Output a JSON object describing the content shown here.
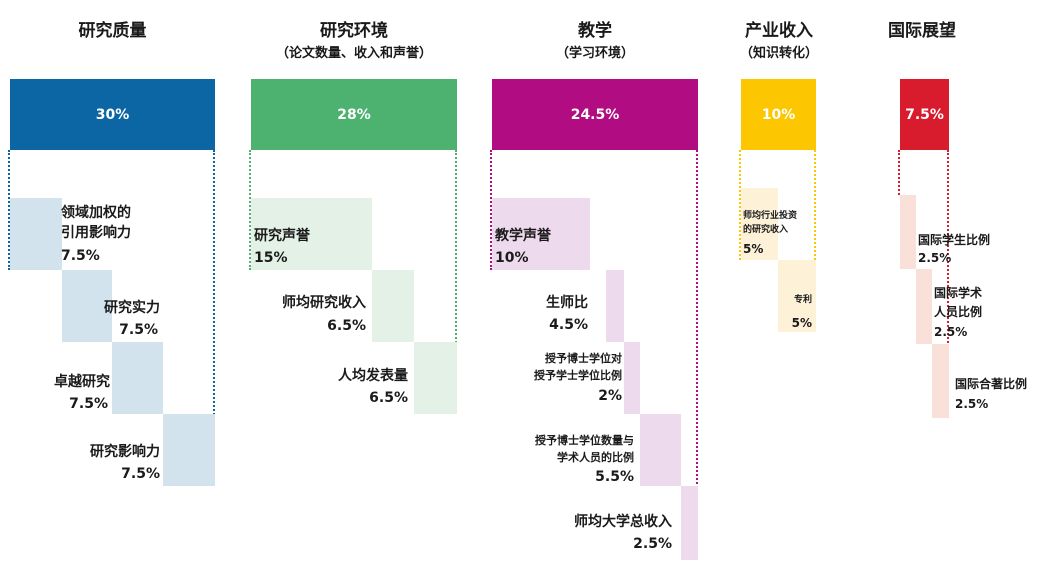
{
  "pillars": [
    {
      "title": "研究质量",
      "subtitle": "",
      "weight": "30%",
      "color": "#0c66a3",
      "tint": "#d3e3ee",
      "items": [
        {
          "name": "领域加权的\n引用影响力",
          "weight": "7.5%"
        },
        {
          "name": "研究实力",
          "weight": "7.5%"
        },
        {
          "name": "卓越研究",
          "weight": "7.5%"
        },
        {
          "name": "研究影响力",
          "weight": "7.5%"
        }
      ]
    },
    {
      "title": "研究环境",
      "subtitle": "（论文数量、收入和声誉）",
      "weight": "28%",
      "color": "#4db170",
      "tint": "#e3f1e6",
      "items": [
        {
          "name": "研究声誉",
          "weight": "15%"
        },
        {
          "name": "师均研究收入",
          "weight": "6.5%"
        },
        {
          "name": "人均发表量",
          "weight": "6.5%"
        }
      ]
    },
    {
      "title": "教学",
      "subtitle": "（学习环境）",
      "weight": "24.5%",
      "color": "#b10c81",
      "tint": "#eedaed",
      "items": [
        {
          "name": "教学声誉",
          "weight": "10%"
        },
        {
          "name": "生师比",
          "weight": "4.5%"
        },
        {
          "name": "授予博士学位对\n授予学士学位比例",
          "weight": "2%"
        },
        {
          "name": "授予博士学位数量与\n学术人员的比例",
          "weight": "5.5%"
        },
        {
          "name": "师均大学总收入",
          "weight": "2.5%"
        }
      ]
    },
    {
      "title": "产业收入",
      "subtitle": "（知识转化）",
      "weight": "10%",
      "color": "#fcc600",
      "tint": "#fdf2d8",
      "items": [
        {
          "name": "师均行业投资\n的研究收入",
          "weight": "5%"
        },
        {
          "name": "专利",
          "weight": "5%"
        }
      ]
    },
    {
      "title": "国际展望",
      "subtitle": "",
      "weight": "7.5%",
      "color": "#d81c2d",
      "tint": "#f9e0d9",
      "items": [
        {
          "name": "国际学生比例",
          "weight": "2.5%"
        },
        {
          "name": "国际学术\n人员比例",
          "weight": "2.5%"
        },
        {
          "name": "国际合著比例",
          "weight": "2.5%"
        }
      ]
    }
  ]
}
